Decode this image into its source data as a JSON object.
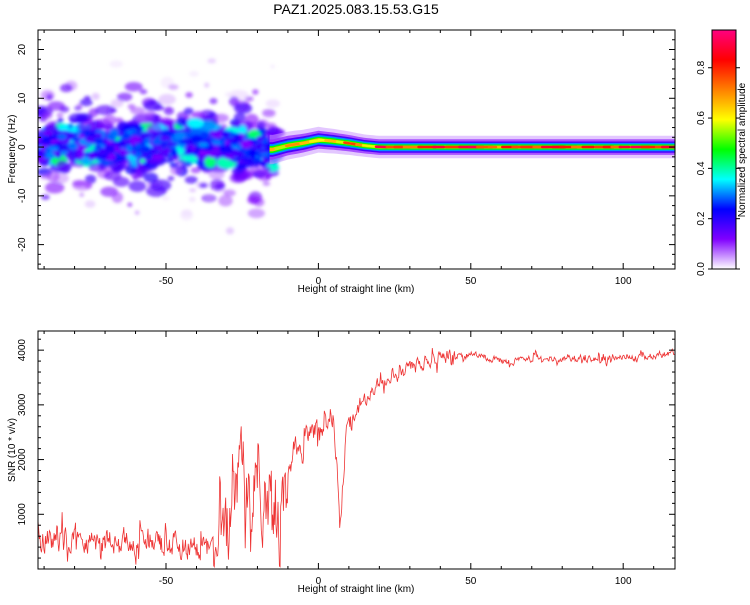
{
  "chart_data": [
    {
      "type": "heatmap",
      "title": "PAZ1.2025.083.15.53.G15",
      "xlabel": "Height of straight line (km)",
      "ylabel": "Frequency (Hz)",
      "xlim": [
        -92,
        117
      ],
      "ylim": [
        -25,
        24
      ],
      "xticks": [
        -50,
        0,
        50,
        100
      ],
      "yticks": [
        -20,
        -10,
        0,
        10,
        20
      ],
      "ridge": {
        "x": [
          -90,
          -80,
          -70,
          -60,
          -50,
          -40,
          -30,
          -20,
          -15,
          -10,
          -5,
          0,
          5,
          10,
          15,
          20,
          30,
          40,
          50,
          60,
          70,
          80,
          90,
          100,
          110,
          117
        ],
        "freq": [
          0.5,
          0.8,
          0.3,
          0.6,
          0.2,
          1.0,
          0.3,
          -0.5,
          -0.5,
          0.3,
          0.8,
          1.5,
          1.2,
          0.8,
          0.3,
          0.0,
          0.0,
          0.0,
          0.0,
          0.0,
          0.0,
          0.0,
          0.0,
          0.0,
          0.0,
          0.0
        ]
      },
      "colorbar": {
        "label": "Normalized spectral amplitude",
        "range": [
          0.0,
          0.95
        ],
        "ticks": [
          "0.0",
          "0.2",
          "0.4",
          "0.6",
          "0.8"
        ],
        "tick_values": [
          0.0,
          0.2,
          0.4,
          0.6,
          0.8
        ],
        "colors": [
          "#ffffff",
          "#8000ff",
          "#0000ff",
          "#00ffff",
          "#00ff00",
          "#ffff00",
          "#ff8000",
          "#ff0000",
          "#ff0080"
        ]
      }
    },
    {
      "type": "line",
      "xlabel": "Height of straight line (km)",
      "ylabel": "SNR (10 * v/v)",
      "xlim": [
        -92,
        117
      ],
      "ylim": [
        0,
        4350
      ],
      "xticks": [
        -50,
        0,
        50,
        100
      ],
      "yticks": [
        1000,
        2000,
        3000,
        4000
      ],
      "color": "#ee3333",
      "series": [
        {
          "x": [
            -92,
            -85,
            -80,
            -75,
            -70,
            -65,
            -60,
            -55,
            -50,
            -45,
            -40,
            -35,
            -32,
            -28,
            -25,
            -22,
            -20,
            -17,
            -15,
            -12,
            -10,
            -8,
            -5,
            -2,
            0,
            2,
            5,
            7,
            9,
            11,
            14,
            17,
            20,
            25,
            30,
            35,
            40,
            45,
            48,
            50,
            55,
            60,
            65,
            70,
            75,
            80,
            85,
            90,
            95,
            100,
            105,
            110,
            117
          ],
          "y": [
            500,
            550,
            600,
            500,
            550,
            520,
            500,
            480,
            450,
            420,
            400,
            380,
            450,
            1200,
            1800,
            1600,
            1400,
            1200,
            1000,
            1100,
            1600,
            2100,
            2400,
            2500,
            2550,
            2700,
            2800,
            700,
            2600,
            2700,
            3000,
            3200,
            3400,
            3600,
            3700,
            3800,
            3850,
            3900,
            3900,
            3950,
            3850,
            3800,
            3800,
            3850,
            3850,
            3850,
            3850,
            3850,
            3850,
            3900,
            3850,
            3900,
            3950
          ]
        }
      ]
    }
  ]
}
